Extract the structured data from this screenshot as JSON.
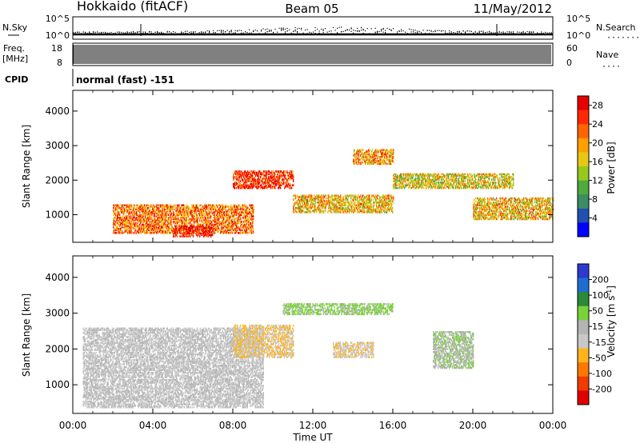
{
  "header": {
    "station": "Hokkaido (fitACF)",
    "beam": "Beam 05",
    "date": "11/May/2012"
  },
  "noise_panel": {
    "left_label": "N.Sky",
    "right_label": "N.Search",
    "right_dots": "·······",
    "left_ticks": [
      "10^5",
      "10^0"
    ],
    "right_ticks": [
      "10^5",
      "10^0"
    ]
  },
  "freq_panel": {
    "left_label_1": "Freq.",
    "left_label_2": "[MHz]",
    "right_label": "Nave",
    "right_dots": "····",
    "left_ticks": [
      "18",
      "8"
    ],
    "right_ticks": [
      "60",
      "0"
    ]
  },
  "cpid": {
    "label": "CPID",
    "mode_text": "normal (fast) -151"
  },
  "colors": {
    "power_scale": [
      "#0000ff",
      "#2050b0",
      "#3c8c64",
      "#50aa3c",
      "#96c81e",
      "#e6c814",
      "#ffa000",
      "#ff6400",
      "#ff2800",
      "#e60000"
    ],
    "velocity_scale": [
      "#2c3ad0",
      "#1e6ed2",
      "#2a8a3a",
      "#7ad23a",
      "#b4b4b4",
      "#c8c8c8",
      "#ffb41e",
      "#ff7800",
      "#f03c00",
      "#e00000"
    ]
  },
  "chart_data": [
    {
      "type": "heatmap",
      "title": "",
      "xlabel": "",
      "ylabel": "Slant Range [km]",
      "x_range": [
        "00:00",
        "24:00"
      ],
      "ylim": [
        200,
        4600
      ],
      "y_ticks": [
        1000,
        2000,
        3000,
        4000
      ],
      "colorbar": {
        "label": "Power [dB]",
        "ticks": [
          4,
          8,
          12,
          16,
          20,
          24,
          28
        ],
        "range": [
          0,
          30
        ]
      },
      "regions": [
        {
          "t_start": 2.0,
          "t_end": 9.0,
          "range_start": 500,
          "range_end": 1300,
          "power": 22
        },
        {
          "t_start": 5.0,
          "t_end": 7.0,
          "range_start": 400,
          "range_end": 700,
          "power": 28
        },
        {
          "t_start": 8.0,
          "t_end": 11.0,
          "range_start": 1800,
          "range_end": 2300,
          "power": 26
        },
        {
          "t_start": 11.0,
          "t_end": 16.0,
          "range_start": 1100,
          "range_end": 1600,
          "power": 18
        },
        {
          "t_start": 14.0,
          "t_end": 16.0,
          "range_start": 2500,
          "range_end": 2900,
          "power": 20
        },
        {
          "t_start": 16.0,
          "t_end": 22.0,
          "range_start": 1800,
          "range_end": 2200,
          "power": 16
        },
        {
          "t_start": 20.0,
          "t_end": 24.0,
          "range_start": 900,
          "range_end": 1500,
          "power": 18
        }
      ]
    },
    {
      "type": "heatmap",
      "title": "",
      "xlabel": "Time UT",
      "ylabel": "Slant Range [km]",
      "x_ticks": [
        "00:00",
        "04:00",
        "08:00",
        "12:00",
        "16:00",
        "20:00",
        "00:00"
      ],
      "ylim": [
        200,
        4600
      ],
      "y_ticks": [
        1000,
        2000,
        3000,
        4000
      ],
      "colorbar": {
        "label": "Velocity [m s^-1]",
        "label_main": "Velocity [m s",
        "label_sup": "-1",
        "label_end": "]",
        "ticks": [
          200,
          100,
          50,
          15,
          -15,
          -50,
          -100,
          -200
        ],
        "range": [
          -250,
          250
        ]
      },
      "regions": [
        {
          "t_start": 0.5,
          "t_end": 9.5,
          "range_start": 400,
          "range_end": 2600,
          "velocity": 0
        },
        {
          "t_start": 8.0,
          "t_end": 11.0,
          "range_start": 1800,
          "range_end": 2700,
          "velocity": -50
        },
        {
          "t_start": 10.5,
          "t_end": 16.0,
          "range_start": 3000,
          "range_end": 3300,
          "velocity": 60
        },
        {
          "t_start": 13.0,
          "t_end": 15.0,
          "range_start": 1800,
          "range_end": 2200,
          "velocity": -40
        },
        {
          "t_start": 18.0,
          "t_end": 20.0,
          "range_start": 1500,
          "range_end": 2500,
          "velocity": 40
        }
      ]
    }
  ]
}
